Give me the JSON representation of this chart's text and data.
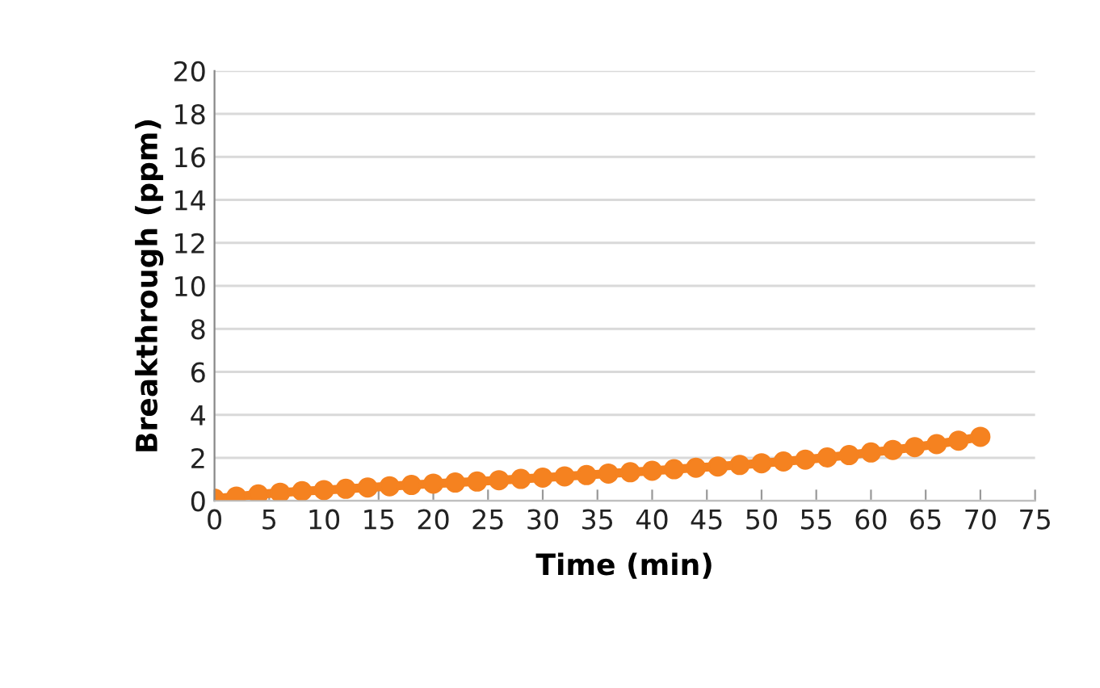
{
  "chart_data": {
    "type": "line",
    "xlabel": "Time (min)",
    "ylabel": "Breakthrough (ppm)",
    "xlim": [
      0,
      75
    ],
    "xticks": [
      0,
      5,
      10,
      15,
      20,
      25,
      30,
      35,
      40,
      45,
      50,
      55,
      60,
      65,
      70,
      75
    ],
    "ylim": [
      0,
      20
    ],
    "yticks": [
      0,
      2,
      4,
      6,
      8,
      10,
      12,
      14,
      16,
      18,
      20
    ],
    "grid": "y",
    "marker": "circle",
    "line_style": "solid",
    "series": [
      {
        "color": "#f58220",
        "x": [
          0,
          2,
          4,
          6,
          8,
          10,
          12,
          14,
          16,
          18,
          20,
          22,
          24,
          26,
          28,
          30,
          32,
          34,
          36,
          38,
          40,
          42,
          44,
          46,
          48,
          50,
          52,
          54,
          56,
          58,
          60,
          62,
          64,
          66,
          68,
          70
        ],
        "values": [
          0.1,
          0.2,
          0.3,
          0.38,
          0.45,
          0.5,
          0.56,
          0.62,
          0.68,
          0.74,
          0.8,
          0.85,
          0.9,
          0.96,
          1.02,
          1.08,
          1.14,
          1.2,
          1.27,
          1.33,
          1.4,
          1.47,
          1.54,
          1.6,
          1.67,
          1.75,
          1.83,
          1.92,
          2.02,
          2.13,
          2.25,
          2.37,
          2.5,
          2.64,
          2.8,
          2.98
        ]
      }
    ]
  }
}
